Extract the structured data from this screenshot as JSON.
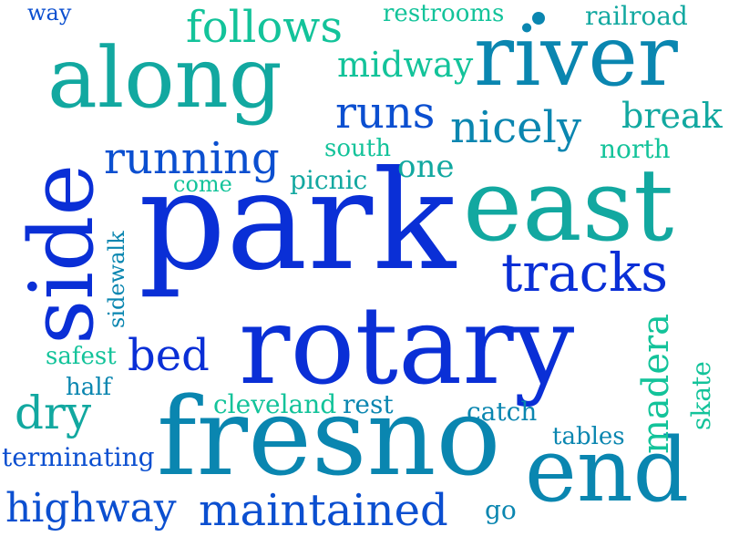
{
  "words": {
    "park": "park",
    "rotary": "rotary",
    "east": "east",
    "fresno": "fresno",
    "end": "end",
    "river": "river",
    "along": "along",
    "side": "side",
    "tracks": "tracks",
    "running": "running",
    "runs": "runs",
    "nicely": "nicely",
    "follows": "follows",
    "midway": "midway",
    "maintained": "maintained",
    "highway": "highway",
    "bed": "bed",
    "dry": "dry",
    "break": "break",
    "one": "one",
    "madera": "madera",
    "railroad": "railroad",
    "restrooms": "restrooms",
    "north": "north",
    "south": "south",
    "picnic": "picnic",
    "come": "come",
    "way": "way",
    "sidewalk": "sidewalk",
    "safest": "safest",
    "half": "half",
    "cleveland": "cleveland",
    "rest": "rest",
    "catch": "catch",
    "tables": "tables",
    "skate": "skate",
    "terminating": "terminating",
    "go": "go"
  },
  "colors": {
    "deep_blue": "#0a2fd6",
    "blue": "#0b4fd0",
    "blue_teal": "#0a86b0",
    "teal": "#12a8a0",
    "green_teal": "#13c39a"
  }
}
